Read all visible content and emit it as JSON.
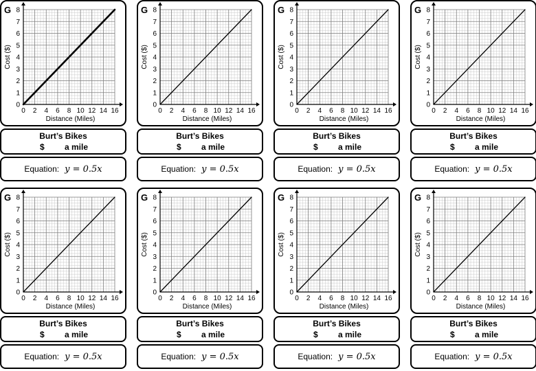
{
  "graph": {
    "letter": "G",
    "xlabel": "Distance (Miles)",
    "ylabel": "Cost ($)",
    "x_ticks": [
      "0",
      "2",
      "4",
      "6",
      "8",
      "10",
      "12",
      "14",
      "16"
    ],
    "y_ticks": [
      "0",
      "1",
      "2",
      "3",
      "4",
      "5",
      "6",
      "7",
      "8"
    ]
  },
  "card": {
    "company": "Burt’s Bikes",
    "dollar": "$",
    "rate_label": "a mile",
    "eq_label": "Equation:",
    "eq_expr": "y = 0.5x"
  },
  "chart_data": {
    "type": "line",
    "title": "",
    "xlabel": "Distance (Miles)",
    "ylabel": "Cost ($)",
    "xlim": [
      0,
      16
    ],
    "ylim": [
      0,
      8
    ],
    "grid": true,
    "series": [
      {
        "name": "y = 0.5x",
        "x": [
          0,
          16
        ],
        "y": [
          0,
          8
        ]
      }
    ]
  }
}
